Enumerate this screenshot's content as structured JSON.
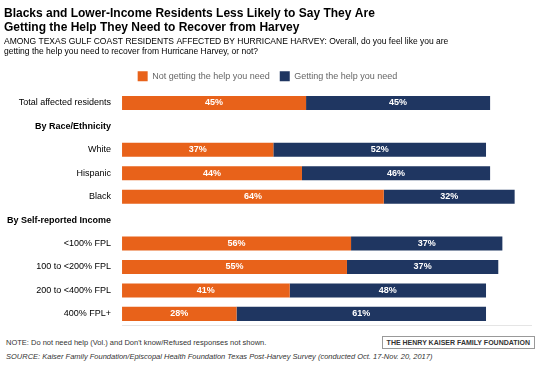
{
  "chart_data": {
    "type": "bar",
    "orientation": "horizontal",
    "stacked": true,
    "title": [
      "Blacks and Lower-Income Residents Less Likely to Say They Are",
      "Getting the Help They Need to Recover from Harvey"
    ],
    "subtitle": [
      "AMONG TEXAS GULF COAST RESIDENTS AFFECTED BY HURRICANE HARVEY: Overall, do you feel like you are",
      "getting the help you need to recover from Hurricane Harvey, or not?"
    ],
    "categories": [
      "Total affected residents",
      "By Race/Ethnicity",
      "White",
      "Hispanic",
      "Black",
      "By Self-reported Income",
      "<100% FPL",
      "100 to <200% FPL",
      "200 to <400% FPL",
      "400% FPL+"
    ],
    "series": [
      {
        "name": "Not getting the help you need",
        "color": "#e8621a",
        "values": [
          45,
          null,
          37,
          44,
          64,
          null,
          56,
          55,
          41,
          28
        ],
        "value_labels": [
          "45%",
          null,
          "37%",
          "44%",
          "64%",
          null,
          "56%",
          "55%",
          "41%",
          "28%"
        ]
      },
      {
        "name": "Getting the help you need",
        "color": "#1f3661",
        "values": [
          45,
          null,
          52,
          46,
          32,
          null,
          37,
          37,
          48,
          61
        ],
        "value_labels": [
          "45%",
          null,
          "52%",
          "46%",
          "32%",
          null,
          "37%",
          "37%",
          "48%",
          "61%"
        ]
      }
    ],
    "xlim": [
      0,
      100
    ],
    "tick_labels": "y",
    "data_labels": true,
    "grid": false,
    "legend": "top",
    "note": "NOTE: Do not need help (Vol.) and Don't know/Refused responses not shown.",
    "source": "SOURCE: Kaiser Family Foundation/Episcopal Health Foundation Texas Post-Harvey Survey (conducted Oct. 17-Nov. 20, 2017)",
    "annotations": [
      "THE HENRY",
      "KAISER",
      "FAMILY",
      "FOUNDATION"
    ]
  }
}
